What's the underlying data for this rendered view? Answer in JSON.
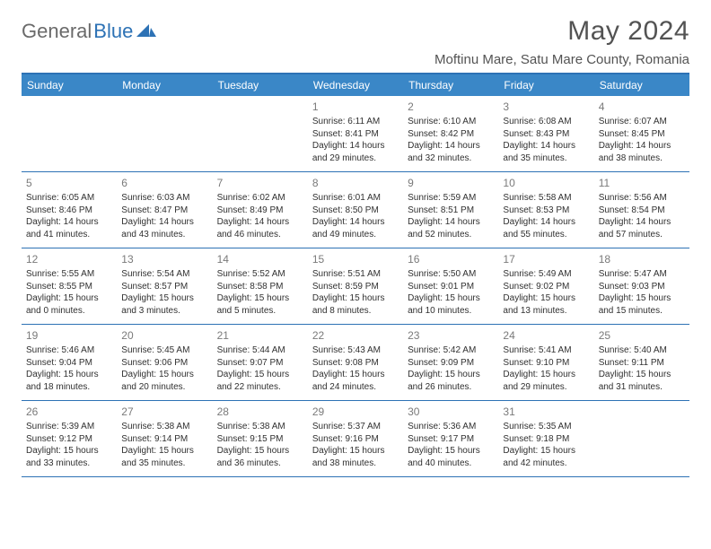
{
  "logo": {
    "text1": "General",
    "text2": "Blue"
  },
  "title": "May 2024",
  "location": "Moftinu Mare, Satu Mare County, Romania",
  "colors": {
    "accent": "#2d72b5",
    "header_bg": "#3a87c7",
    "text_gray": "#535353",
    "day_num": "#7a7a7a",
    "body_text": "#303030"
  },
  "weekdays": [
    "Sunday",
    "Monday",
    "Tuesday",
    "Wednesday",
    "Thursday",
    "Friday",
    "Saturday"
  ],
  "weeks": [
    [
      null,
      null,
      null,
      {
        "n": "1",
        "sunrise": "6:11 AM",
        "sunset": "8:41 PM",
        "dl": "14 hours and 29 minutes."
      },
      {
        "n": "2",
        "sunrise": "6:10 AM",
        "sunset": "8:42 PM",
        "dl": "14 hours and 32 minutes."
      },
      {
        "n": "3",
        "sunrise": "6:08 AM",
        "sunset": "8:43 PM",
        "dl": "14 hours and 35 minutes."
      },
      {
        "n": "4",
        "sunrise": "6:07 AM",
        "sunset": "8:45 PM",
        "dl": "14 hours and 38 minutes."
      }
    ],
    [
      {
        "n": "5",
        "sunrise": "6:05 AM",
        "sunset": "8:46 PM",
        "dl": "14 hours and 41 minutes."
      },
      {
        "n": "6",
        "sunrise": "6:03 AM",
        "sunset": "8:47 PM",
        "dl": "14 hours and 43 minutes."
      },
      {
        "n": "7",
        "sunrise": "6:02 AM",
        "sunset": "8:49 PM",
        "dl": "14 hours and 46 minutes."
      },
      {
        "n": "8",
        "sunrise": "6:01 AM",
        "sunset": "8:50 PM",
        "dl": "14 hours and 49 minutes."
      },
      {
        "n": "9",
        "sunrise": "5:59 AM",
        "sunset": "8:51 PM",
        "dl": "14 hours and 52 minutes."
      },
      {
        "n": "10",
        "sunrise": "5:58 AM",
        "sunset": "8:53 PM",
        "dl": "14 hours and 55 minutes."
      },
      {
        "n": "11",
        "sunrise": "5:56 AM",
        "sunset": "8:54 PM",
        "dl": "14 hours and 57 minutes."
      }
    ],
    [
      {
        "n": "12",
        "sunrise": "5:55 AM",
        "sunset": "8:55 PM",
        "dl": "15 hours and 0 minutes."
      },
      {
        "n": "13",
        "sunrise": "5:54 AM",
        "sunset": "8:57 PM",
        "dl": "15 hours and 3 minutes."
      },
      {
        "n": "14",
        "sunrise": "5:52 AM",
        "sunset": "8:58 PM",
        "dl": "15 hours and 5 minutes."
      },
      {
        "n": "15",
        "sunrise": "5:51 AM",
        "sunset": "8:59 PM",
        "dl": "15 hours and 8 minutes."
      },
      {
        "n": "16",
        "sunrise": "5:50 AM",
        "sunset": "9:01 PM",
        "dl": "15 hours and 10 minutes."
      },
      {
        "n": "17",
        "sunrise": "5:49 AM",
        "sunset": "9:02 PM",
        "dl": "15 hours and 13 minutes."
      },
      {
        "n": "18",
        "sunrise": "5:47 AM",
        "sunset": "9:03 PM",
        "dl": "15 hours and 15 minutes."
      }
    ],
    [
      {
        "n": "19",
        "sunrise": "5:46 AM",
        "sunset": "9:04 PM",
        "dl": "15 hours and 18 minutes."
      },
      {
        "n": "20",
        "sunrise": "5:45 AM",
        "sunset": "9:06 PM",
        "dl": "15 hours and 20 minutes."
      },
      {
        "n": "21",
        "sunrise": "5:44 AM",
        "sunset": "9:07 PM",
        "dl": "15 hours and 22 minutes."
      },
      {
        "n": "22",
        "sunrise": "5:43 AM",
        "sunset": "9:08 PM",
        "dl": "15 hours and 24 minutes."
      },
      {
        "n": "23",
        "sunrise": "5:42 AM",
        "sunset": "9:09 PM",
        "dl": "15 hours and 26 minutes."
      },
      {
        "n": "24",
        "sunrise": "5:41 AM",
        "sunset": "9:10 PM",
        "dl": "15 hours and 29 minutes."
      },
      {
        "n": "25",
        "sunrise": "5:40 AM",
        "sunset": "9:11 PM",
        "dl": "15 hours and 31 minutes."
      }
    ],
    [
      {
        "n": "26",
        "sunrise": "5:39 AM",
        "sunset": "9:12 PM",
        "dl": "15 hours and 33 minutes."
      },
      {
        "n": "27",
        "sunrise": "5:38 AM",
        "sunset": "9:14 PM",
        "dl": "15 hours and 35 minutes."
      },
      {
        "n": "28",
        "sunrise": "5:38 AM",
        "sunset": "9:15 PM",
        "dl": "15 hours and 36 minutes."
      },
      {
        "n": "29",
        "sunrise": "5:37 AM",
        "sunset": "9:16 PM",
        "dl": "15 hours and 38 minutes."
      },
      {
        "n": "30",
        "sunrise": "5:36 AM",
        "sunset": "9:17 PM",
        "dl": "15 hours and 40 minutes."
      },
      {
        "n": "31",
        "sunrise": "5:35 AM",
        "sunset": "9:18 PM",
        "dl": "15 hours and 42 minutes."
      },
      null
    ]
  ],
  "labels": {
    "sunrise": "Sunrise:",
    "sunset": "Sunset:",
    "daylight": "Daylight:"
  }
}
